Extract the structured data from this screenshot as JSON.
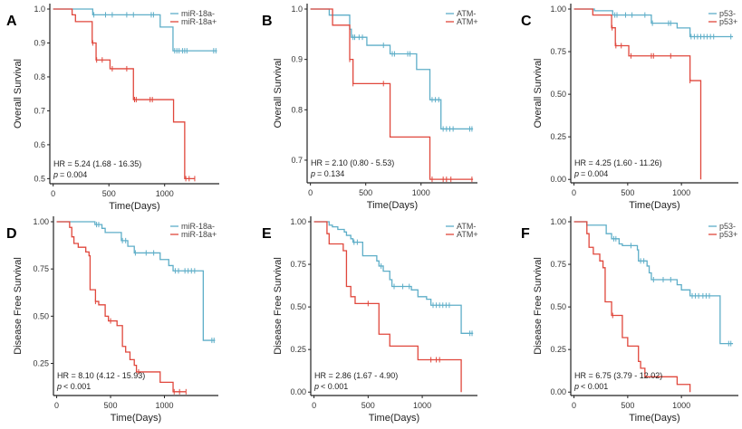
{
  "colors": {
    "negative": "#5eaec8",
    "positive": "#e0473c"
  },
  "chart_data": [
    {
      "panel": "A",
      "type": "line",
      "ylabel": "Overall Survival",
      "xlabel": "Time(Days)",
      "xticks": [
        0,
        500,
        1000
      ],
      "yticks": [
        "0.5",
        "0.6",
        "0.7",
        "0.8",
        "0.9",
        "1.0"
      ],
      "ylim": [
        0.485,
        1.0
      ],
      "xlim": [
        -30,
        1490
      ],
      "hr": "HR = 5.24 (1.68 -  16.35)",
      "p_label": "p",
      "p_value": "= 0.004",
      "series": [
        {
          "name": "miR-18a-",
          "steps": [
            [
              0,
              1
            ],
            [
              355,
              0.983
            ],
            [
              960,
              0.947
            ],
            [
              1075,
              0.877
            ],
            [
              1470,
              0.877
            ]
          ],
          "censor": [
            365,
            470,
            530,
            660,
            720,
            880,
            900,
            1090,
            1110,
            1130,
            1160,
            1180,
            1200,
            1440,
            1460
          ]
        },
        {
          "name": "miR-18a+",
          "steps": [
            [
              0,
              1
            ],
            [
              170,
              0.983
            ],
            [
              200,
              0.963
            ],
            [
              350,
              0.9
            ],
            [
              385,
              0.85
            ],
            [
              510,
              0.824
            ],
            [
              720,
              0.733
            ],
            [
              1080,
              0.667
            ],
            [
              1180,
              0.5
            ],
            [
              1270,
              0.5
            ]
          ],
          "censor": [
            355,
            390,
            440,
            530,
            660,
            730,
            745,
            870,
            890,
            1190,
            1220,
            1270
          ]
        }
      ]
    },
    {
      "panel": "B",
      "type": "line",
      "ylabel": "Overall Survival",
      "xlabel": "Time(Days)",
      "xticks": [
        0,
        500,
        1000
      ],
      "yticks": [
        "0.7",
        "0.8",
        "0.9",
        "1.0"
      ],
      "ylim": [
        0.655,
        1.0
      ],
      "xlim": [
        -30,
        1510
      ],
      "hr": "HR = 2.10 (0.80 -  5.53)",
      "p_label": "p",
      "p_value": "= 0.134",
      "series": [
        {
          "name": "ATM-",
          "steps": [
            [
              0,
              1
            ],
            [
              170,
              0.988
            ],
            [
              355,
              0.96
            ],
            [
              370,
              0.944
            ],
            [
              510,
              0.928
            ],
            [
              720,
              0.911
            ],
            [
              960,
              0.88
            ],
            [
              1080,
              0.82
            ],
            [
              1180,
              0.762
            ],
            [
              1470,
              0.762
            ]
          ],
          "censor": [
            385,
            400,
            440,
            470,
            660,
            740,
            760,
            880,
            900,
            1100,
            1130,
            1160,
            1200,
            1230,
            1260,
            1290,
            1440,
            1460
          ]
        },
        {
          "name": "ATM+",
          "steps": [
            [
              0,
              1
            ],
            [
              200,
              0.968
            ],
            [
              355,
              0.9
            ],
            [
              385,
              0.852
            ],
            [
              720,
              0.746
            ],
            [
              1080,
              0.662
            ],
            [
              1470,
              0.662
            ]
          ],
          "censor": [
            355,
            385,
            660,
            1100,
            1200,
            1230,
            1270,
            1460
          ]
        }
      ]
    },
    {
      "panel": "C",
      "type": "line",
      "ylabel": "Overall Survival",
      "xlabel": "Time(Days)",
      "xticks": [
        0,
        500,
        1000
      ],
      "yticks": [
        "0.00",
        "0.25",
        "0.50",
        "0.75",
        "1.00"
      ],
      "ylim": [
        -0.02,
        1.0
      ],
      "xlim": [
        -30,
        1530
      ],
      "hr": "HR = 4.25 (1.60 -  11.26)",
      "p_label": "p",
      "p_value": "= 0.004",
      "series": [
        {
          "name": "p53-",
          "steps": [
            [
              0,
              1
            ],
            [
              190,
              0.99
            ],
            [
              360,
              0.965
            ],
            [
              720,
              0.917
            ],
            [
              960,
              0.889
            ],
            [
              1080,
              0.838
            ],
            [
              1480,
              0.838
            ]
          ],
          "censor": [
            380,
            400,
            480,
            540,
            660,
            730,
            880,
            900,
            1090,
            1120,
            1150,
            1180,
            1210,
            1240,
            1270,
            1300,
            1460
          ]
        },
        {
          "name": "p53+",
          "steps": [
            [
              0,
              1
            ],
            [
              175,
              0.965
            ],
            [
              350,
              0.89
            ],
            [
              385,
              0.785
            ],
            [
              510,
              0.725
            ],
            [
              1080,
              0.58
            ],
            [
              1180,
              0.0
            ]
          ],
          "censor": [
            355,
            390,
            440,
            530,
            720,
            740,
            900,
            1080
          ]
        }
      ]
    },
    {
      "panel": "D",
      "type": "line",
      "ylabel": "Disease Free Survival",
      "xlabel": "Time(Days)",
      "xticks": [
        0,
        500,
        1000
      ],
      "yticks": [
        "0.25",
        "0.50",
        "0.75",
        "1.00"
      ],
      "ylim": [
        0.08,
        1.0
      ],
      "xlim": [
        -30,
        1500
      ],
      "hr": "HR = 8.10 (4.12 -  15.93)",
      "p_label": "p",
      "p_value": "< 0.001",
      "series": [
        {
          "name": "miR-18a-",
          "steps": [
            [
              0,
              1
            ],
            [
              355,
              0.985
            ],
            [
              420,
              0.965
            ],
            [
              450,
              0.943
            ],
            [
              600,
              0.9
            ],
            [
              660,
              0.87
            ],
            [
              720,
              0.835
            ],
            [
              960,
              0.8
            ],
            [
              1040,
              0.768
            ],
            [
              1080,
              0.74
            ],
            [
              1360,
              0.372
            ],
            [
              1470,
              0.372
            ]
          ],
          "censor": [
            370,
            390,
            610,
            640,
            730,
            830,
            900,
            1100,
            1130,
            1190,
            1220,
            1250,
            1280,
            1440,
            1460
          ]
        },
        {
          "name": "miR-18a+",
          "steps": [
            [
              0,
              1
            ],
            [
              120,
              0.97
            ],
            [
              140,
              0.92
            ],
            [
              160,
              0.885
            ],
            [
              200,
              0.865
            ],
            [
              270,
              0.84
            ],
            [
              300,
              0.82
            ],
            [
              310,
              0.64
            ],
            [
              360,
              0.578
            ],
            [
              390,
              0.56
            ],
            [
              450,
              0.5
            ],
            [
              480,
              0.475
            ],
            [
              560,
              0.45
            ],
            [
              610,
              0.34
            ],
            [
              640,
              0.31
            ],
            [
              680,
              0.27
            ],
            [
              720,
              0.24
            ],
            [
              740,
              0.205
            ],
            [
              960,
              0.15
            ],
            [
              1080,
              0.1
            ],
            [
              1200,
              0.1
            ]
          ],
          "censor": [
            360,
            500,
            760,
            1090,
            1140,
            1200
          ]
        }
      ]
    },
    {
      "panel": "E",
      "type": "line",
      "ylabel": "Disease Free Survival",
      "xlabel": "Time(Days)",
      "xticks": [
        0,
        500,
        1000
      ],
      "yticks": [
        "0.00",
        "0.25",
        "0.50",
        "0.75",
        "1.00"
      ],
      "ylim": [
        -0.02,
        1.0
      ],
      "xlim": [
        -30,
        1510
      ],
      "hr": "HR = 2.86 (1.67 -  4.90)",
      "p_label": "p",
      "p_value": "< 0.001",
      "series": [
        {
          "name": "ATM-",
          "steps": [
            [
              0,
              1
            ],
            [
              140,
              0.98
            ],
            [
              170,
              0.97
            ],
            [
              220,
              0.955
            ],
            [
              280,
              0.94
            ],
            [
              300,
              0.92
            ],
            [
              340,
              0.9
            ],
            [
              360,
              0.88
            ],
            [
              450,
              0.8
            ],
            [
              580,
              0.77
            ],
            [
              600,
              0.74
            ],
            [
              640,
              0.71
            ],
            [
              700,
              0.66
            ],
            [
              720,
              0.62
            ],
            [
              900,
              0.6
            ],
            [
              960,
              0.56
            ],
            [
              1040,
              0.545
            ],
            [
              1080,
              0.51
            ],
            [
              1360,
              0.345
            ],
            [
              1470,
              0.345
            ]
          ],
          "censor": [
            370,
            400,
            620,
            740,
            820,
            880,
            1100,
            1130,
            1160,
            1190,
            1220,
            1250,
            1440,
            1460
          ]
        },
        {
          "name": "ATM+",
          "steps": [
            [
              0,
              1
            ],
            [
              120,
              0.93
            ],
            [
              140,
              0.87
            ],
            [
              270,
              0.83
            ],
            [
              300,
              0.62
            ],
            [
              340,
              0.56
            ],
            [
              380,
              0.52
            ],
            [
              600,
              0.34
            ],
            [
              700,
              0.27
            ],
            [
              960,
              0.19
            ],
            [
              1360,
              0.0
            ]
          ],
          "censor": [
            500,
            1080,
            1130,
            1160
          ]
        }
      ]
    },
    {
      "panel": "F",
      "type": "line",
      "ylabel": "Disease Free Survival",
      "xlabel": "Time(Days)",
      "xticks": [
        0,
        500,
        1000
      ],
      "yticks": [
        "0.00",
        "0.25",
        "0.50",
        "0.75",
        "1.00"
      ],
      "ylim": [
        -0.02,
        1.0
      ],
      "xlim": [
        -30,
        1530
      ],
      "hr": "HR = 6.75 (3.79 -  12.02)",
      "p_label": "p",
      "p_value": "< 0.001",
      "series": [
        {
          "name": "p53-",
          "steps": [
            [
              0,
              1
            ],
            [
              120,
              0.98
            ],
            [
              300,
              0.93
            ],
            [
              350,
              0.9
            ],
            [
              420,
              0.87
            ],
            [
              450,
              0.86
            ],
            [
              590,
              0.835
            ],
            [
              600,
              0.77
            ],
            [
              680,
              0.74
            ],
            [
              700,
              0.7
            ],
            [
              720,
              0.66
            ],
            [
              960,
              0.63
            ],
            [
              1000,
              0.6
            ],
            [
              1080,
              0.565
            ],
            [
              1360,
              0.285
            ],
            [
              1480,
              0.285
            ]
          ],
          "censor": [
            370,
            390,
            530,
            620,
            650,
            740,
            830,
            900,
            1100,
            1130,
            1160,
            1200,
            1230,
            1260,
            1440,
            1460
          ]
        },
        {
          "name": "p53+",
          "steps": [
            [
              0,
              1
            ],
            [
              120,
              0.93
            ],
            [
              140,
              0.85
            ],
            [
              180,
              0.81
            ],
            [
              240,
              0.77
            ],
            [
              270,
              0.73
            ],
            [
              290,
              0.53
            ],
            [
              350,
              0.45
            ],
            [
              450,
              0.32
            ],
            [
              500,
              0.27
            ],
            [
              600,
              0.18
            ],
            [
              620,
              0.14
            ],
            [
              660,
              0.09
            ],
            [
              960,
              0.045
            ],
            [
              1080,
              0.0
            ]
          ],
          "censor": [
            360
          ]
        }
      ]
    }
  ]
}
